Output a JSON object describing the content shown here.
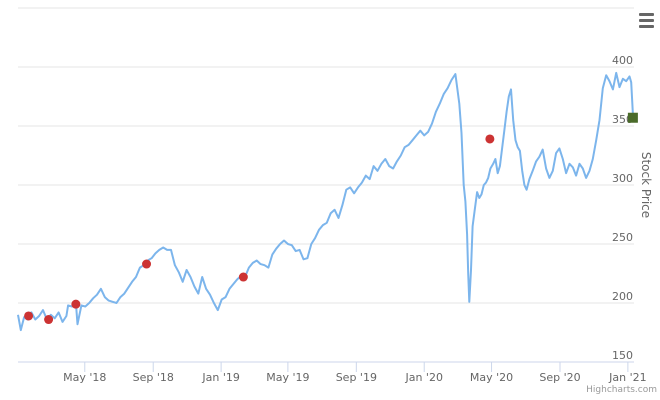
{
  "chart_data": {
    "type": "line",
    "yaxis": {
      "title": "Stock Price",
      "range": [
        150,
        400
      ],
      "ticks": [
        150,
        200,
        250,
        300,
        350,
        400
      ],
      "side": "right",
      "grid": true
    },
    "xaxis": {
      "range": [
        "2018-01-01",
        "2021-01-12"
      ],
      "ticks": [
        {
          "date": "2018-05-01",
          "label": "May '18"
        },
        {
          "date": "2018-09-01",
          "label": "Sep '18"
        },
        {
          "date": "2019-01-01",
          "label": "Jan '19"
        },
        {
          "date": "2019-05-01",
          "label": "May '19"
        },
        {
          "date": "2019-09-01",
          "label": "Sep '19"
        },
        {
          "date": "2020-01-01",
          "label": "Jan '20"
        },
        {
          "date": "2020-05-01",
          "label": "May '20"
        },
        {
          "date": "2020-09-01",
          "label": "Sep '20"
        },
        {
          "date": "2021-01-01",
          "label": "Jan '21"
        }
      ]
    },
    "series": [
      {
        "color": "#7cb5ec",
        "points": [
          [
            "2018-01-01",
            190
          ],
          [
            "2018-01-06",
            177
          ],
          [
            "2018-01-12",
            188
          ],
          [
            "2018-01-18",
            186
          ],
          [
            "2018-01-25",
            192
          ],
          [
            "2018-02-01",
            186
          ],
          [
            "2018-02-08",
            189
          ],
          [
            "2018-02-15",
            194
          ],
          [
            "2018-02-22",
            186
          ],
          [
            "2018-03-01",
            190
          ],
          [
            "2018-03-08",
            187
          ],
          [
            "2018-03-15",
            192
          ],
          [
            "2018-03-22",
            184
          ],
          [
            "2018-03-29",
            189
          ],
          [
            "2018-04-01",
            198
          ],
          [
            "2018-04-08",
            197
          ],
          [
            "2018-04-15",
            200
          ],
          [
            "2018-04-18",
            182
          ],
          [
            "2018-04-25",
            198
          ],
          [
            "2018-05-02",
            197
          ],
          [
            "2018-05-09",
            200
          ],
          [
            "2018-05-16",
            204
          ],
          [
            "2018-05-23",
            207
          ],
          [
            "2018-05-30",
            212
          ],
          [
            "2018-06-06",
            205
          ],
          [
            "2018-06-13",
            202
          ],
          [
            "2018-06-20",
            201
          ],
          [
            "2018-06-27",
            200
          ],
          [
            "2018-07-04",
            205
          ],
          [
            "2018-07-11",
            208
          ],
          [
            "2018-07-18",
            213
          ],
          [
            "2018-07-25",
            218
          ],
          [
            "2018-08-01",
            222
          ],
          [
            "2018-08-08",
            230
          ],
          [
            "2018-08-15",
            232
          ],
          [
            "2018-08-22",
            236
          ],
          [
            "2018-08-29",
            238
          ],
          [
            "2018-09-05",
            242
          ],
          [
            "2018-09-12",
            245
          ],
          [
            "2018-09-19",
            247
          ],
          [
            "2018-09-26",
            245
          ],
          [
            "2018-10-03",
            245
          ],
          [
            "2018-10-10",
            232
          ],
          [
            "2018-10-17",
            226
          ],
          [
            "2018-10-24",
            218
          ],
          [
            "2018-10-31",
            228
          ],
          [
            "2018-11-07",
            222
          ],
          [
            "2018-11-14",
            214
          ],
          [
            "2018-11-21",
            208
          ],
          [
            "2018-11-28",
            222
          ],
          [
            "2018-12-05",
            212
          ],
          [
            "2018-12-12",
            207
          ],
          [
            "2018-12-19",
            200
          ],
          [
            "2018-12-26",
            194
          ],
          [
            "2019-01-02",
            203
          ],
          [
            "2019-01-09",
            205
          ],
          [
            "2019-01-16",
            212
          ],
          [
            "2019-01-23",
            216
          ],
          [
            "2019-01-30",
            220
          ],
          [
            "2019-02-06",
            223
          ],
          [
            "2019-02-13",
            222
          ],
          [
            "2019-02-20",
            230
          ],
          [
            "2019-02-27",
            234
          ],
          [
            "2019-03-06",
            236
          ],
          [
            "2019-03-13",
            233
          ],
          [
            "2019-03-20",
            232
          ],
          [
            "2019-03-27",
            230
          ],
          [
            "2019-04-03",
            241
          ],
          [
            "2019-04-10",
            246
          ],
          [
            "2019-04-17",
            250
          ],
          [
            "2019-04-24",
            253
          ],
          [
            "2019-05-01",
            250
          ],
          [
            "2019-05-08",
            249
          ],
          [
            "2019-05-15",
            244
          ],
          [
            "2019-05-22",
            245
          ],
          [
            "2019-05-29",
            237
          ],
          [
            "2019-06-05",
            238
          ],
          [
            "2019-06-12",
            250
          ],
          [
            "2019-06-19",
            255
          ],
          [
            "2019-06-26",
            262
          ],
          [
            "2019-07-03",
            266
          ],
          [
            "2019-07-10",
            268
          ],
          [
            "2019-07-17",
            276
          ],
          [
            "2019-07-24",
            279
          ],
          [
            "2019-07-31",
            272
          ],
          [
            "2019-08-07",
            283
          ],
          [
            "2019-08-14",
            296
          ],
          [
            "2019-08-21",
            298
          ],
          [
            "2019-08-28",
            293
          ],
          [
            "2019-09-04",
            298
          ],
          [
            "2019-09-11",
            302
          ],
          [
            "2019-09-18",
            308
          ],
          [
            "2019-09-25",
            305
          ],
          [
            "2019-10-02",
            316
          ],
          [
            "2019-10-09",
            312
          ],
          [
            "2019-10-16",
            318
          ],
          [
            "2019-10-23",
            322
          ],
          [
            "2019-10-30",
            316
          ],
          [
            "2019-11-06",
            314
          ],
          [
            "2019-11-13",
            320
          ],
          [
            "2019-11-20",
            325
          ],
          [
            "2019-11-27",
            332
          ],
          [
            "2019-12-04",
            334
          ],
          [
            "2019-12-11",
            338
          ],
          [
            "2019-12-18",
            342
          ],
          [
            "2019-12-25",
            346
          ],
          [
            "2020-01-01",
            342
          ],
          [
            "2020-01-08",
            345
          ],
          [
            "2020-01-15",
            352
          ],
          [
            "2020-01-22",
            362
          ],
          [
            "2020-01-29",
            369
          ],
          [
            "2020-02-05",
            377
          ],
          [
            "2020-02-12",
            382
          ],
          [
            "2020-02-19",
            389
          ],
          [
            "2020-02-26",
            394
          ],
          [
            "2020-03-04",
            369
          ],
          [
            "2020-03-08",
            344
          ],
          [
            "2020-03-12",
            300
          ],
          [
            "2020-03-15",
            286
          ],
          [
            "2020-03-18",
            258
          ],
          [
            "2020-03-20",
            225
          ],
          [
            "2020-03-22",
            201
          ],
          [
            "2020-03-25",
            228
          ],
          [
            "2020-03-28",
            265
          ],
          [
            "2020-04-01",
            280
          ],
          [
            "2020-04-05",
            294
          ],
          [
            "2020-04-09",
            289
          ],
          [
            "2020-04-13",
            292
          ],
          [
            "2020-04-17",
            300
          ],
          [
            "2020-04-21",
            302
          ],
          [
            "2020-04-25",
            306
          ],
          [
            "2020-04-29",
            314
          ],
          [
            "2020-05-04",
            318
          ],
          [
            "2020-05-08",
            322
          ],
          [
            "2020-05-12",
            310
          ],
          [
            "2020-05-16",
            316
          ],
          [
            "2020-05-20",
            331
          ],
          [
            "2020-05-24",
            346
          ],
          [
            "2020-05-28",
            362
          ],
          [
            "2020-06-01",
            375
          ],
          [
            "2020-06-05",
            381
          ],
          [
            "2020-06-09",
            355
          ],
          [
            "2020-06-13",
            338
          ],
          [
            "2020-06-17",
            332
          ],
          [
            "2020-06-21",
            329
          ],
          [
            "2020-06-25",
            312
          ],
          [
            "2020-06-29",
            300
          ],
          [
            "2020-07-03",
            296
          ],
          [
            "2020-07-08",
            305
          ],
          [
            "2020-07-14",
            312
          ],
          [
            "2020-07-20",
            320
          ],
          [
            "2020-07-26",
            324
          ],
          [
            "2020-08-01",
            330
          ],
          [
            "2020-08-07",
            314
          ],
          [
            "2020-08-13",
            306
          ],
          [
            "2020-08-19",
            312
          ],
          [
            "2020-08-25",
            327
          ],
          [
            "2020-08-31",
            331
          ],
          [
            "2020-09-06",
            322
          ],
          [
            "2020-09-12",
            310
          ],
          [
            "2020-09-18",
            318
          ],
          [
            "2020-09-24",
            315
          ],
          [
            "2020-09-30",
            308
          ],
          [
            "2020-10-06",
            318
          ],
          [
            "2020-10-12",
            314
          ],
          [
            "2020-10-18",
            306
          ],
          [
            "2020-10-24",
            312
          ],
          [
            "2020-10-30",
            322
          ],
          [
            "2020-11-05",
            338
          ],
          [
            "2020-11-11",
            355
          ],
          [
            "2020-11-17",
            382
          ],
          [
            "2020-11-23",
            393
          ],
          [
            "2020-11-29",
            388
          ],
          [
            "2020-12-05",
            381
          ],
          [
            "2020-12-11",
            395
          ],
          [
            "2020-12-17",
            383
          ],
          [
            "2020-12-23",
            390
          ],
          [
            "2020-12-29",
            388
          ],
          [
            "2021-01-04",
            392
          ],
          [
            "2021-01-07",
            387
          ],
          [
            "2021-01-10",
            360
          ]
        ]
      }
    ],
    "markers": [
      {
        "date": "2018-01-20",
        "value": 189,
        "color": "#cc3333",
        "shape": "circle"
      },
      {
        "date": "2018-02-25",
        "value": 186,
        "color": "#cc3333",
        "shape": "circle"
      },
      {
        "date": "2018-04-15",
        "value": 199,
        "color": "#cc3333",
        "shape": "circle"
      },
      {
        "date": "2018-08-20",
        "value": 233,
        "color": "#cc3333",
        "shape": "circle"
      },
      {
        "date": "2019-02-10",
        "value": 222,
        "color": "#cc3333",
        "shape": "circle"
      },
      {
        "date": "2020-04-28",
        "value": 339,
        "color": "#cc3333",
        "shape": "circle"
      },
      {
        "date": "2021-01-10",
        "value": 357,
        "color": "#4a6b2a",
        "shape": "square"
      }
    ]
  },
  "credits": "Highcharts.com",
  "menu_icon": "hamburger-menu-icon"
}
